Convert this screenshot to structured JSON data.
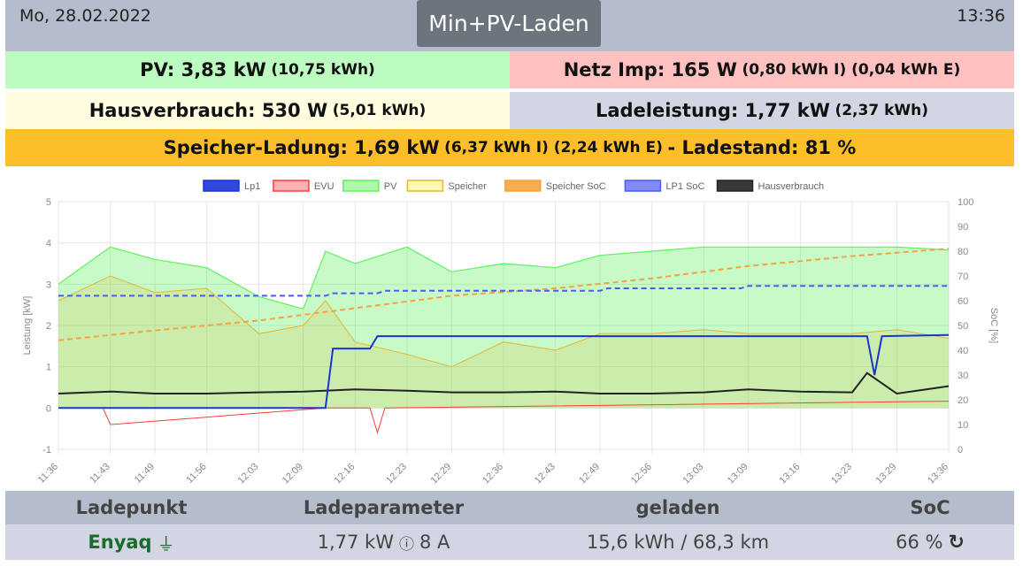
{
  "header": {
    "date": "Mo, 28.02.2022",
    "time": "13:36",
    "mode_button": "Min+PV-Laden"
  },
  "summary": {
    "pv": {
      "label": "PV: 3,83 kW",
      "detail": "(10,75 kWh)"
    },
    "netz": {
      "label": "Netz Imp: 165 W",
      "detail": "(0,80 kWh I) (0,04 kWh E)"
    },
    "haus": {
      "label": "Hausverbrauch: 530 W",
      "detail": "(5,01 kWh)"
    },
    "lade": {
      "label": "Ladeleistung: 1,77 kW",
      "detail": "(2,37 kWh)"
    },
    "speicher": {
      "label": "Speicher-Ladung: 1,69 kW",
      "detail": "(6,37 kWh I) (2,24 kWh E)",
      "soc_label": "- Ladestand: 81 %"
    }
  },
  "colors": {
    "lp1": "#1a35d6",
    "evu": "#ff3b3b",
    "pv": "#5ef25e",
    "speicher": "#e3b53c",
    "speicher_soc": "#f5a340",
    "lp1_soc": "#4a5cf0",
    "haus": "#222222"
  },
  "chart_data": {
    "type": "line",
    "legend": [
      "Lp1",
      "EVU",
      "PV",
      "Speicher",
      "Speicher SoC",
      "LP1 SoC",
      "Hausverbrauch"
    ],
    "legend_position": "top",
    "ylabel_left": "Leistung [kW]",
    "ylabel_right": "SoC [%]",
    "ylim_left": [
      -1,
      5
    ],
    "ylim_right": [
      0,
      100
    ],
    "yticks_left": [
      "-1",
      "0",
      "1",
      "2",
      "3",
      "4",
      "5"
    ],
    "yticks_right": [
      "0",
      "10",
      "20",
      "30",
      "40",
      "50",
      "60",
      "70",
      "80",
      "90",
      "100"
    ],
    "x_ticks": [
      "11:36",
      "11:43",
      "11:49",
      "11:56",
      "12:03",
      "12:09",
      "12:16",
      "12:23",
      "12:29",
      "12:36",
      "12:43",
      "12:49",
      "12:56",
      "13:03",
      "13:09",
      "13:16",
      "13:23",
      "13:29",
      "13:36"
    ],
    "grid": true,
    "series": [
      {
        "name": "PV",
        "x": [
          "11:36",
          "11:43",
          "11:49",
          "11:56",
          "12:03",
          "12:09",
          "12:12",
          "12:16",
          "12:23",
          "12:29",
          "12:36",
          "12:43",
          "12:49",
          "12:56",
          "13:03",
          "13:09",
          "13:16",
          "13:23",
          "13:29",
          "13:36"
        ],
        "values": [
          3.0,
          3.9,
          3.6,
          3.4,
          2.7,
          2.4,
          3.8,
          3.5,
          3.9,
          3.3,
          3.5,
          3.4,
          3.7,
          3.8,
          3.9,
          3.9,
          3.9,
          3.9,
          3.9,
          3.83
        ]
      },
      {
        "name": "Speicher",
        "x": [
          "11:36",
          "11:43",
          "11:49",
          "11:56",
          "12:03",
          "12:09",
          "12:12",
          "12:16",
          "12:23",
          "12:29",
          "12:36",
          "12:43",
          "12:49",
          "12:56",
          "13:03",
          "13:09",
          "13:16",
          "13:23",
          "13:29",
          "13:36"
        ],
        "values": [
          2.6,
          3.2,
          2.8,
          2.9,
          1.8,
          2.0,
          2.6,
          1.6,
          1.3,
          1.0,
          1.6,
          1.4,
          1.8,
          1.8,
          1.9,
          1.8,
          1.8,
          1.8,
          1.9,
          1.69
        ]
      },
      {
        "name": "Lp1",
        "x": [
          "11:36",
          "12:12",
          "12:13",
          "12:18",
          "12:19",
          "13:25",
          "13:26",
          "13:27",
          "13:36"
        ],
        "values": [
          0,
          0,
          1.44,
          1.44,
          1.74,
          1.74,
          0.8,
          1.74,
          1.77
        ]
      },
      {
        "name": "EVU",
        "x": [
          "11:36",
          "11:42",
          "11:43",
          "12:12",
          "12:18",
          "12:19",
          "12:20",
          "13:36"
        ],
        "values": [
          0,
          0,
          -0.4,
          0,
          0,
          -0.6,
          0,
          0.165
        ]
      },
      {
        "name": "Hausverbrauch",
        "x": [
          "11:36",
          "11:43",
          "11:49",
          "11:56",
          "12:03",
          "12:09",
          "12:16",
          "12:23",
          "12:29",
          "12:36",
          "12:43",
          "12:49",
          "12:56",
          "13:03",
          "13:09",
          "13:16",
          "13:23",
          "13:25",
          "13:29",
          "13:36"
        ],
        "values": [
          0.35,
          0.4,
          0.35,
          0.35,
          0.38,
          0.4,
          0.45,
          0.42,
          0.38,
          0.38,
          0.4,
          0.35,
          0.35,
          0.38,
          0.45,
          0.4,
          0.38,
          0.85,
          0.35,
          0.53
        ]
      },
      {
        "name": "Speicher SoC",
        "axis": "right",
        "x": [
          "11:36",
          "11:49",
          "12:03",
          "12:16",
          "12:29",
          "12:43",
          "12:56",
          "13:09",
          "13:23",
          "13:36"
        ],
        "values": [
          44,
          48,
          52,
          57,
          62,
          65,
          69,
          74,
          78,
          81
        ]
      },
      {
        "name": "LP1 SoC",
        "axis": "right",
        "x": [
          "11:36",
          "12:12",
          "12:13",
          "12:19",
          "12:20",
          "12:41",
          "12:42",
          "12:49",
          "12:50",
          "13:08",
          "13:09",
          "13:36"
        ],
        "values": [
          62,
          62,
          63,
          63,
          64,
          64,
          64,
          64,
          65,
          65,
          66,
          66
        ]
      }
    ]
  },
  "table": {
    "headers": [
      "Ladepunkt",
      "Ladeparameter",
      "geladen",
      "SoC"
    ],
    "row": {
      "name": "Enyaq",
      "param_power": "1,77 kW",
      "param_current": "8 A",
      "charged": "15,6 kWh / 68,3 km",
      "soc": "66 %"
    }
  }
}
